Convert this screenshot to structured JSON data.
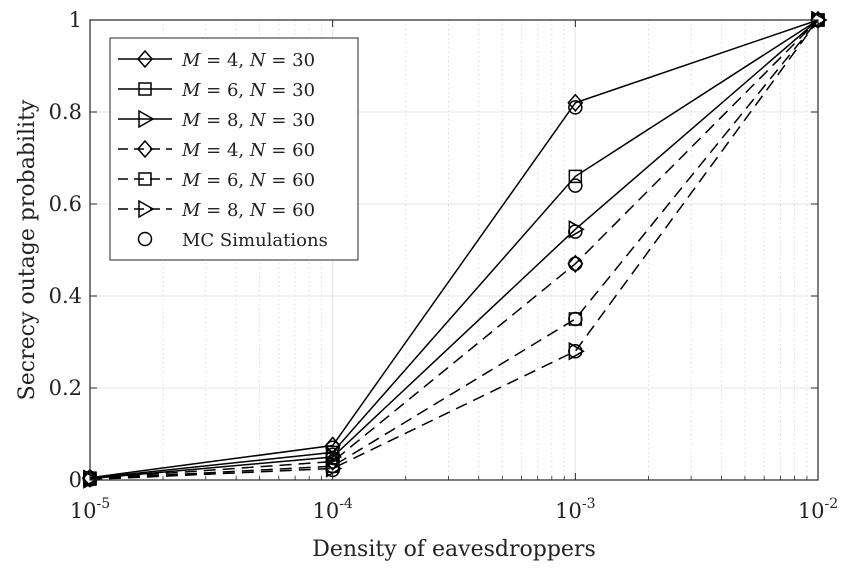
{
  "chart_data": {
    "type": "line",
    "title": "",
    "xlabel": "Density of eavesdroppers",
    "ylabel": "Secrecy outage probability",
    "xscale": "log",
    "xlim": [
      1e-05,
      0.01
    ],
    "ylim": [
      0,
      1
    ],
    "grid": "on (major and minor)",
    "legend_position": "top-left",
    "x": [
      1e-05,
      0.0001,
      0.001,
      0.01
    ],
    "x_tick_labels": [
      {
        "base": "10",
        "exp": "-5"
      },
      {
        "base": "10",
        "exp": "-4"
      },
      {
        "base": "10",
        "exp": "-3"
      },
      {
        "base": "10",
        "exp": "-2"
      }
    ],
    "y_ticks": [
      0,
      0.2,
      0.4,
      0.6,
      0.8,
      1
    ],
    "y_tick_labels": [
      "0",
      "0.2",
      "0.4",
      "0.6",
      "0.8",
      "1"
    ],
    "series": [
      {
        "name": "M = 4, N = 30",
        "M": "4",
        "N": "30",
        "line": "solid",
        "marker": "diamond",
        "values": [
          0.005,
          0.075,
          0.82,
          1.0
        ]
      },
      {
        "name": "M = 6, N = 30",
        "M": "6",
        "N": "30",
        "line": "solid",
        "marker": "square",
        "values": [
          0.004,
          0.06,
          0.66,
          1.0
        ]
      },
      {
        "name": "M = 8, N = 30",
        "M": "8",
        "N": "30",
        "line": "solid",
        "marker": "triangle-right",
        "values": [
          0.003,
          0.05,
          0.545,
          1.0
        ]
      },
      {
        "name": "M = 4, N = 60",
        "M": "4",
        "N": "60",
        "line": "dashed",
        "marker": "diamond",
        "values": [
          0.003,
          0.04,
          0.47,
          1.0
        ]
      },
      {
        "name": "M = 6, N = 60",
        "M": "6",
        "N": "60",
        "line": "dashed",
        "marker": "square",
        "values": [
          0.002,
          0.03,
          0.35,
          1.0
        ]
      },
      {
        "name": "M = 8, N = 60",
        "M": "8",
        "N": "60",
        "line": "dashed",
        "marker": "triangle-right",
        "values": [
          0.001,
          0.025,
          0.28,
          1.0
        ]
      }
    ],
    "mc_simulations": {
      "name": "MC Simulations",
      "marker": "circle",
      "points": [
        [
          1e-05,
          0.005
        ],
        [
          0.0001,
          0.07
        ],
        [
          0.001,
          0.81
        ],
        [
          0.01,
          1.0
        ],
        [
          1e-05,
          0.004
        ],
        [
          0.0001,
          0.055
        ],
        [
          0.001,
          0.64
        ],
        [
          1e-05,
          0.003
        ],
        [
          0.0001,
          0.048
        ],
        [
          0.001,
          0.54
        ],
        [
          1e-05,
          0.003
        ],
        [
          0.0001,
          0.04
        ],
        [
          0.001,
          0.47
        ],
        [
          1e-05,
          0.002
        ],
        [
          0.0001,
          0.03
        ],
        [
          0.001,
          0.35
        ],
        [
          1e-05,
          0.001
        ],
        [
          0.0001,
          0.022
        ],
        [
          0.001,
          0.28
        ]
      ]
    },
    "colors": {
      "line": "#000000",
      "grid": "#e6e6e6",
      "axes": "#262626",
      "background": "#ffffff"
    }
  }
}
